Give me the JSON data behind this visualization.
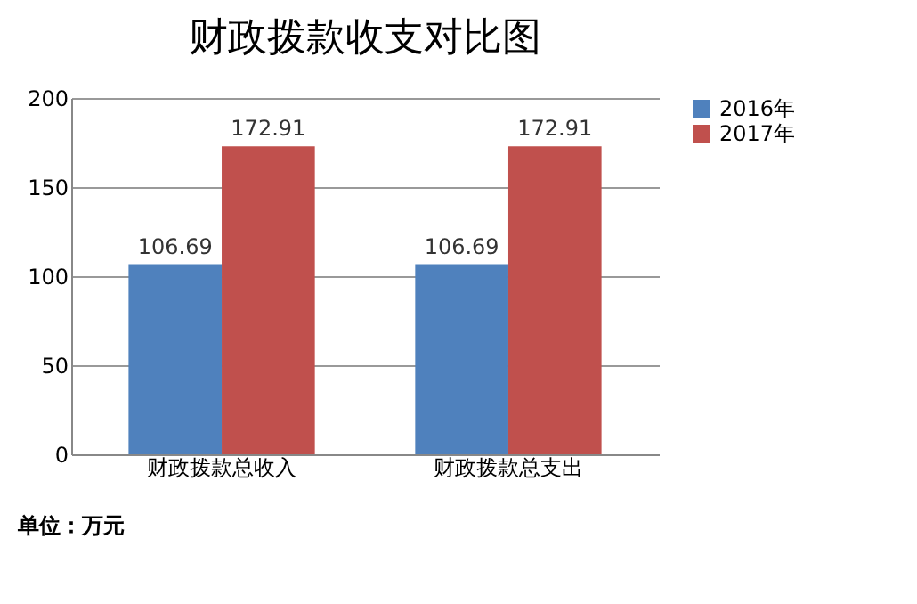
{
  "chart_data": {
    "type": "bar",
    "title": "财政拨款收支对比图",
    "categories": [
      "财政拨款总收入",
      "财政拨款总支出"
    ],
    "series": [
      {
        "name": "2016年",
        "color": "#4f81bd",
        "values": [
          106.69,
          106.69
        ]
      },
      {
        "name": "2017年",
        "color": "#c0504d",
        "values": [
          172.91,
          172.91
        ]
      }
    ],
    "ylim": [
      0,
      200
    ],
    "yticks": [
      0,
      50,
      100,
      150,
      200
    ],
    "grid": "y",
    "legend": "right",
    "data_labels": true,
    "annotations": [
      "单位：万元"
    ]
  }
}
